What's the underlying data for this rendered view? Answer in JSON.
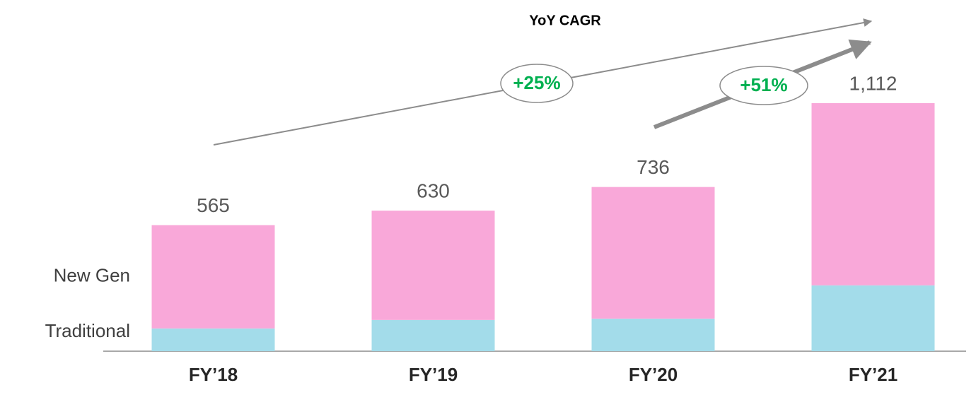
{
  "chart_data": {
    "type": "stacked_bar",
    "title": "YoY CAGR",
    "annotations": [
      "+25%",
      "+51%"
    ],
    "categories": [
      "FY’18",
      "FY’19",
      "FY’20",
      "FY’21"
    ],
    "series": [
      {
        "name": "Traditional",
        "color": "#a3dcea",
        "values": [
          102,
          140,
          146,
          295
        ]
      },
      {
        "name": "New Gen",
        "color": "#f9a8d9",
        "values": [
          463,
          490,
          590,
          817
        ]
      }
    ],
    "totals": [
      565,
      630,
      736,
      1112
    ],
    "total_labels": [
      "565",
      "630",
      "736",
      "1,112"
    ],
    "ylim": [
      0,
      1400
    ]
  }
}
